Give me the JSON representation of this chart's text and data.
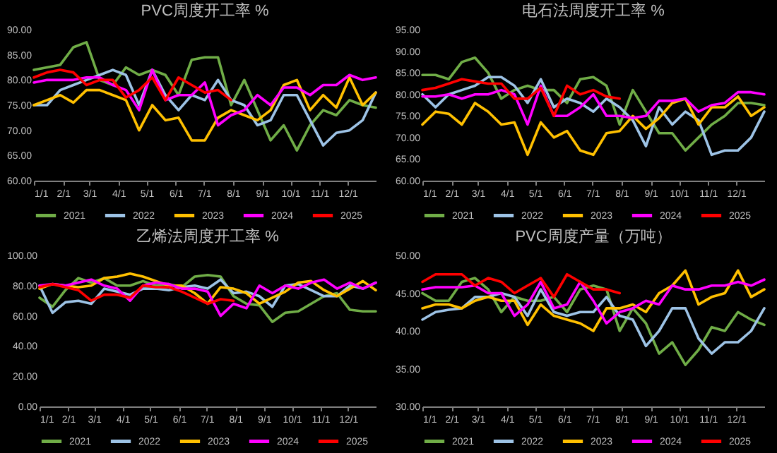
{
  "chart_data": [
    {
      "type": "line",
      "title": "PVC周度开工率 %",
      "legend": "bottom",
      "line_style": "solid",
      "x": [
        "--01-01",
        "--01-15",
        "--01-29",
        "--02-12",
        "--02-26",
        "--03-12",
        "--03-26",
        "--04-09",
        "--04-23",
        "--05-07",
        "--05-21",
        "--06-04",
        "--06-18",
        "--07-02",
        "--07-16",
        "--07-30",
        "--08-13",
        "--08-27",
        "--09-10",
        "--09-24",
        "--10-08",
        "--10-22",
        "--11-05",
        "--11-19",
        "--12-03",
        "--12-17",
        "--12-31"
      ],
      "xlim": [
        "--01-01",
        "--12-31"
      ],
      "xticks": [
        {
          "value": "--01-01",
          "label": "1/1"
        },
        {
          "value": "--02-01",
          "label": "2/1"
        },
        {
          "value": "--03-01",
          "label": "3/1"
        },
        {
          "value": "--04-01",
          "label": "4/1"
        },
        {
          "value": "--05-01",
          "label": "5/1"
        },
        {
          "value": "--06-01",
          "label": "6/1"
        },
        {
          "value": "--07-01",
          "label": "7/1"
        },
        {
          "value": "--08-01",
          "label": "8/1"
        },
        {
          "value": "--09-01",
          "label": "9/1"
        },
        {
          "value": "--10-01",
          "label": "10/1"
        },
        {
          "value": "--11-01",
          "label": "11/1"
        },
        {
          "value": "--12-01",
          "label": "12/1"
        }
      ],
      "ylim": [
        60,
        90
      ],
      "yticks": [
        {
          "value": 60,
          "label": "60.00"
        },
        {
          "value": 65,
          "label": "65.00"
        },
        {
          "value": 70,
          "label": "70.00"
        },
        {
          "value": 75,
          "label": "75.00"
        },
        {
          "value": 80,
          "label": "80.00"
        },
        {
          "value": 85,
          "label": "85.00"
        },
        {
          "value": 90,
          "label": "90.00"
        }
      ],
      "series": [
        {
          "name": "2021",
          "color": "#70ad47",
          "values": [
            82,
            82.5,
            83,
            86.5,
            87.5,
            80,
            79,
            82.5,
            81,
            82,
            81,
            77,
            84,
            84.5,
            84.5,
            75,
            80,
            74,
            68,
            71,
            66,
            71,
            74,
            73,
            76,
            75,
            74.5
          ]
        },
        {
          "name": "2022",
          "color": "#9dc3e6",
          "values": [
            75,
            75,
            78,
            79,
            80,
            81,
            82,
            81,
            75,
            82,
            77,
            74,
            77,
            76,
            80,
            76,
            75,
            71,
            72,
            77,
            77,
            72,
            67,
            69.5,
            70,
            72,
            77.5
          ]
        },
        {
          "name": "2023",
          "color": "#ffc000",
          "values": [
            75,
            76,
            77,
            75.5,
            78,
            78,
            77,
            76,
            70,
            75,
            72,
            72.5,
            68,
            68,
            72.5,
            74,
            73,
            72,
            74,
            79,
            80,
            74,
            77,
            74.5,
            80.5,
            75,
            77.5
          ]
        },
        {
          "name": "2024",
          "color": "#ff00ff",
          "values": [
            79.5,
            80,
            80,
            80,
            80.5,
            80.5,
            79,
            78,
            74,
            82,
            76,
            77,
            77,
            79.5,
            71,
            73,
            74,
            77,
            75,
            78.5,
            78.5,
            77,
            79,
            79,
            81,
            80,
            80.5
          ]
        },
        {
          "name": "2025",
          "color": "#ff0000",
          "values": [
            80.5,
            81.5,
            82,
            81.5,
            79,
            80,
            80,
            76.5,
            78,
            80.5,
            76,
            80.5,
            79,
            77.5,
            78,
            76,
            null,
            null,
            null,
            null,
            null,
            null,
            null,
            null,
            null,
            null,
            null
          ]
        }
      ]
    },
    {
      "type": "line",
      "title": "电石法周度开工率 %",
      "legend": "bottom",
      "line_style": "solid",
      "x": [
        "--01-01",
        "--01-15",
        "--01-29",
        "--02-12",
        "--02-26",
        "--03-12",
        "--03-26",
        "--04-09",
        "--04-23",
        "--05-07",
        "--05-21",
        "--06-04",
        "--06-18",
        "--07-02",
        "--07-16",
        "--07-30",
        "--08-13",
        "--08-27",
        "--09-10",
        "--09-24",
        "--10-08",
        "--10-22",
        "--11-05",
        "--11-19",
        "--12-03",
        "--12-17",
        "--12-31"
      ],
      "xlim": [
        "--01-01",
        "--12-31"
      ],
      "xticks": [
        {
          "value": "--01-01",
          "label": "1/1"
        },
        {
          "value": "--02-01",
          "label": "2/1"
        },
        {
          "value": "--03-01",
          "label": "3/1"
        },
        {
          "value": "--04-01",
          "label": "4/1"
        },
        {
          "value": "--05-01",
          "label": "5/1"
        },
        {
          "value": "--06-01",
          "label": "6/1"
        },
        {
          "value": "--07-01",
          "label": "7/1"
        },
        {
          "value": "--08-01",
          "label": "8/1"
        },
        {
          "value": "--09-01",
          "label": "9/1"
        },
        {
          "value": "--10-01",
          "label": "10/1"
        },
        {
          "value": "--11-01",
          "label": "11/1"
        },
        {
          "value": "--12-01",
          "label": "12/1"
        }
      ],
      "ylim": [
        60,
        95
      ],
      "yticks": [
        {
          "value": 60,
          "label": "60.00"
        },
        {
          "value": 65,
          "label": "65.00"
        },
        {
          "value": 70,
          "label": "70.00"
        },
        {
          "value": 75,
          "label": "75.00"
        },
        {
          "value": 80,
          "label": "80.00"
        },
        {
          "value": 85,
          "label": "85.00"
        },
        {
          "value": 90,
          "label": "90.00"
        },
        {
          "value": 95,
          "label": "95.00"
        }
      ],
      "series": [
        {
          "name": "2021",
          "color": "#70ad47",
          "values": [
            84.5,
            84.5,
            83.5,
            87.5,
            88.5,
            85,
            79,
            81,
            82,
            81,
            81,
            78,
            83.5,
            84,
            82,
            73,
            81,
            76,
            71,
            71,
            67,
            70,
            73,
            75,
            78,
            78,
            77.5
          ]
        },
        {
          "name": "2022",
          "color": "#9dc3e6",
          "values": [
            80,
            77,
            80,
            81,
            82,
            84,
            84,
            82,
            78,
            83.5,
            77,
            79,
            78,
            76,
            79,
            77,
            74,
            68,
            77,
            73,
            76,
            74,
            66,
            67,
            67,
            70,
            76
          ]
        },
        {
          "name": "2023",
          "color": "#ffc000",
          "values": [
            73,
            76,
            75.5,
            73,
            78,
            76,
            73,
            73.5,
            66,
            73.5,
            70,
            71.5,
            67,
            66,
            71,
            71.5,
            75,
            72,
            74.5,
            78,
            79,
            73,
            77,
            77,
            79.5,
            75,
            77
          ]
        },
        {
          "name": "2024",
          "color": "#ff00ff",
          "values": [
            79.5,
            79.5,
            80,
            79,
            80,
            80,
            81,
            80,
            73,
            82,
            75,
            75,
            77,
            80,
            75,
            75,
            74.5,
            75,
            78.5,
            78.5,
            79,
            76,
            77.5,
            78,
            80.5,
            80.5,
            80
          ]
        },
        {
          "name": "2025",
          "color": "#ff0000",
          "values": [
            81,
            81.5,
            82.5,
            83.5,
            83,
            82.5,
            82.5,
            79,
            79,
            81.5,
            75,
            82,
            80,
            81,
            79.5,
            79,
            null,
            null,
            null,
            null,
            null,
            null,
            null,
            null,
            null,
            null,
            null
          ]
        }
      ]
    },
    {
      "type": "line",
      "title": "乙烯法周度开工率 %",
      "legend": "bottom",
      "line_style": "solid",
      "x": [
        "--01-01",
        "--01-15",
        "--01-29",
        "--02-12",
        "--02-26",
        "--03-12",
        "--03-26",
        "--04-09",
        "--04-23",
        "--05-07",
        "--05-21",
        "--06-04",
        "--06-18",
        "--07-02",
        "--07-16",
        "--07-30",
        "--08-13",
        "--08-27",
        "--09-10",
        "--09-24",
        "--10-08",
        "--10-22",
        "--11-05",
        "--11-19",
        "--12-03",
        "--12-17",
        "--12-31"
      ],
      "xlim": [
        "--01-01",
        "--12-31"
      ],
      "xticks": [
        {
          "value": "--01-01",
          "label": "1/1"
        },
        {
          "value": "--02-01",
          "label": "2/1"
        },
        {
          "value": "--03-01",
          "label": "3/1"
        },
        {
          "value": "--04-01",
          "label": "4/1"
        },
        {
          "value": "--05-01",
          "label": "5/1"
        },
        {
          "value": "--06-01",
          "label": "6/1"
        },
        {
          "value": "--07-01",
          "label": "7/1"
        },
        {
          "value": "--08-01",
          "label": "8/1"
        },
        {
          "value": "--09-01",
          "label": "9/1"
        },
        {
          "value": "--10-01",
          "label": "10/1"
        },
        {
          "value": "--11-01",
          "label": "11/1"
        },
        {
          "value": "--12-01",
          "label": "12/1"
        }
      ],
      "ylim": [
        0,
        100
      ],
      "yticks": [
        {
          "value": 0,
          "label": "0.00"
        },
        {
          "value": 20,
          "label": "20.00"
        },
        {
          "value": 40,
          "label": "40.00"
        },
        {
          "value": 60,
          "label": "60.00"
        },
        {
          "value": 80,
          "label": "80.00"
        },
        {
          "value": 100,
          "label": "100.00"
        }
      ],
      "series": [
        {
          "name": "2021",
          "color": "#70ad47",
          "values": [
            72,
            66,
            77,
            85,
            82,
            85,
            80,
            80,
            83,
            80,
            81,
            79,
            86,
            87,
            86,
            73,
            68,
            67,
            56,
            62,
            63,
            68,
            73,
            75,
            64,
            63,
            63
          ]
        },
        {
          "name": "2022",
          "color": "#9dc3e6",
          "values": [
            80,
            62,
            69,
            70,
            68,
            78,
            76,
            74,
            78,
            78,
            77,
            79,
            80,
            78,
            84,
            75,
            76,
            73,
            66,
            80,
            81,
            77,
            73,
            73,
            80,
            78,
            82
          ]
        },
        {
          "name": "2023",
          "color": "#ffc000",
          "values": [
            78,
            81,
            80,
            79,
            80,
            85,
            86,
            88,
            86,
            83,
            80,
            80,
            75,
            68,
            79,
            78,
            75,
            68,
            72,
            76,
            82,
            83,
            77,
            73,
            78,
            83,
            77
          ]
        },
        {
          "name": "2024",
          "color": "#ff00ff",
          "values": [
            80,
            81,
            80,
            82,
            84,
            80,
            78,
            70,
            80,
            82,
            81,
            78,
            78,
            76,
            60,
            68,
            65,
            80,
            75,
            80,
            78,
            82,
            84,
            78,
            82,
            78,
            82
          ]
        },
        {
          "name": "2025",
          "color": "#ff0000",
          "values": [
            79,
            81,
            79,
            77,
            70,
            74,
            74,
            72,
            80,
            79,
            79,
            76,
            72,
            68,
            71,
            70,
            null,
            null,
            null,
            null,
            null,
            null,
            null,
            null,
            null,
            null,
            null
          ]
        }
      ]
    },
    {
      "type": "line",
      "title": "PVC周度产量（万吨）",
      "legend": "bottom",
      "line_style": "solid",
      "x": [
        "--01-01",
        "--01-15",
        "--01-29",
        "--02-12",
        "--02-26",
        "--03-12",
        "--03-26",
        "--04-09",
        "--04-23",
        "--05-07",
        "--05-21",
        "--06-04",
        "--06-18",
        "--07-02",
        "--07-16",
        "--07-30",
        "--08-13",
        "--08-27",
        "--09-10",
        "--09-24",
        "--10-08",
        "--10-22",
        "--11-05",
        "--11-19",
        "--12-03",
        "--12-17",
        "--12-31"
      ],
      "xlim": [
        "--01-01",
        "--12-31"
      ],
      "xticks": [
        {
          "value": "--01-01",
          "label": "1/1"
        },
        {
          "value": "--02-01",
          "label": "2/1"
        },
        {
          "value": "--03-01",
          "label": "3/1"
        },
        {
          "value": "--04-01",
          "label": "4/1"
        },
        {
          "value": "--05-01",
          "label": "5/1"
        },
        {
          "value": "--06-01",
          "label": "6/1"
        },
        {
          "value": "--07-01",
          "label": "7/1"
        },
        {
          "value": "--08-01",
          "label": "8/1"
        },
        {
          "value": "--09-01",
          "label": "9/1"
        },
        {
          "value": "--10-01",
          "label": "10/1"
        },
        {
          "value": "--11-01",
          "label": "11/1"
        },
        {
          "value": "--12-01",
          "label": "12/1"
        }
      ],
      "ylim": [
        30,
        50
      ],
      "yticks": [
        {
          "value": 30,
          "label": "30.00"
        },
        {
          "value": 35,
          "label": "35.00"
        },
        {
          "value": 40,
          "label": "40.00"
        },
        {
          "value": 45,
          "label": "45.00"
        },
        {
          "value": 50,
          "label": "50.00"
        }
      ],
      "series": [
        {
          "name": "2021",
          "color": "#70ad47",
          "values": [
            45,
            44,
            44,
            46.5,
            47,
            45.5,
            42.5,
            44.5,
            44,
            44,
            44.5,
            42.5,
            45.5,
            46,
            45.5,
            40,
            43,
            41,
            37,
            38.5,
            35.5,
            37.5,
            40.5,
            40,
            42.5,
            41.5,
            40.8
          ]
        },
        {
          "name": "2022",
          "color": "#9dc3e6",
          "values": [
            41.5,
            42.5,
            42.8,
            43,
            44.5,
            44.5,
            45,
            44.5,
            42,
            45.5,
            42.5,
            42,
            42.5,
            42.5,
            44.5,
            42,
            41.5,
            38,
            40,
            43,
            43,
            39,
            37,
            38.5,
            38.5,
            40,
            43
          ]
        },
        {
          "name": "2023",
          "color": "#ffc000",
          "values": [
            43,
            43.5,
            43.5,
            43,
            44,
            44.5,
            44,
            44,
            40.8,
            43.5,
            42,
            41.5,
            41,
            40,
            43,
            43,
            43.5,
            42.5,
            45,
            46,
            48,
            43.5,
            44.5,
            45,
            48,
            44.5,
            45.5
          ]
        },
        {
          "name": "2024",
          "color": "#ff00ff",
          "values": [
            45.5,
            45.8,
            45.8,
            45.8,
            46,
            45,
            45,
            42,
            43.5,
            46.5,
            43,
            43.5,
            46.5,
            44,
            41,
            42.5,
            43,
            44,
            43.5,
            46,
            45.5,
            45.5,
            46,
            46,
            46.5,
            46,
            46.8
          ]
        },
        {
          "name": "2025",
          "color": "#ff0000",
          "values": [
            46.5,
            47.5,
            47.5,
            47.5,
            46,
            47,
            46.5,
            45,
            46,
            47,
            44.5,
            47.5,
            46.5,
            45.5,
            45.5,
            45,
            null,
            null,
            null,
            null,
            null,
            null,
            null,
            null,
            null,
            null,
            null
          ]
        }
      ]
    }
  ]
}
